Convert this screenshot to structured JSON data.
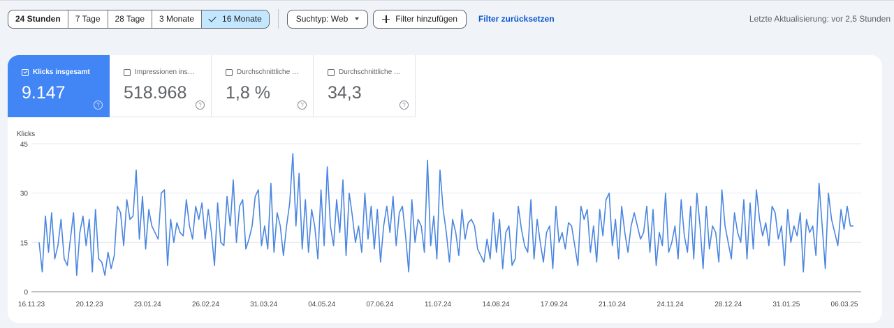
{
  "toolbar": {
    "ranges": [
      {
        "label": "24 Stunden",
        "active": false,
        "bold": true
      },
      {
        "label": "7 Tage",
        "active": false
      },
      {
        "label": "28 Tage",
        "active": false
      },
      {
        "label": "3 Monate",
        "active": false
      },
      {
        "label": "16 Monate",
        "active": true
      }
    ],
    "search_type_label": "Suchtyp: Web",
    "add_filter_label": "Filter hinzufügen",
    "reset_filter_label": "Filter zurücksetzen",
    "last_update": "Letzte Aktualisierung: vor 2,5 Stunden"
  },
  "metrics": [
    {
      "label": "Klicks insgesamt",
      "value": "9.147",
      "checked": true,
      "color": "#4285f4"
    },
    {
      "label": "Impressionen ins…",
      "value": "518.968",
      "checked": false
    },
    {
      "label": "Durchschnittliche …",
      "value": "1,8 %",
      "checked": false
    },
    {
      "label": "Durchschnittliche …",
      "value": "34,3",
      "checked": false
    }
  ],
  "help_glyph": "?",
  "colors": {
    "accent": "#4285f4",
    "line": "#4a86e0",
    "active_range": "#c2e7ff",
    "link": "#0b57d0"
  },
  "chart_data": {
    "type": "line",
    "ylabel": "Klicks",
    "ylim": [
      0,
      45
    ],
    "yticks": [
      "45",
      "30",
      "15",
      "0"
    ],
    "xticks": [
      "16.11.23",
      "20.12.23",
      "23.01.24",
      "26.02.24",
      "31.03.24",
      "04.05.24",
      "07.06.24",
      "11.07.24",
      "14.08.24",
      "17.09.24",
      "21.10.24",
      "24.11.24",
      "28.12.24",
      "31.01.25",
      "06.03.25"
    ],
    "series": [
      {
        "values": [
          15,
          6,
          23,
          12,
          24,
          10,
          14,
          22,
          10,
          8,
          16,
          24,
          5,
          18,
          23,
          14,
          22,
          6,
          25,
          10,
          9,
          5,
          12,
          7,
          11,
          26,
          24,
          14,
          28,
          22,
          23,
          37,
          16,
          29,
          13,
          25,
          20,
          18,
          16,
          30,
          31,
          8,
          22,
          15,
          21,
          18,
          17,
          28,
          20,
          16,
          26,
          22,
          27,
          16,
          25,
          18,
          8,
          27,
          15,
          14,
          29,
          20,
          34,
          15,
          26,
          28,
          13,
          16,
          20,
          29,
          31,
          14,
          20,
          13,
          33,
          12,
          24,
          20,
          11,
          20,
          27,
          42,
          20,
          36,
          13,
          28,
          12,
          25,
          20,
          10,
          31,
          14,
          38,
          20,
          14,
          28,
          18,
          34,
          11,
          30,
          23,
          15,
          20,
          12,
          30,
          16,
          26,
          13,
          25,
          9,
          20,
          26,
          18,
          29,
          14,
          24,
          26,
          17,
          6,
          28,
          15,
          22,
          20,
          12,
          40,
          14,
          23,
          10,
          37,
          25,
          18,
          9,
          22,
          18,
          11,
          25,
          16,
          21,
          22,
          20,
          13,
          11,
          9,
          16,
          10,
          24,
          12,
          22,
          7,
          18,
          20,
          8,
          10,
          26,
          19,
          14,
          12,
          28,
          10,
          22,
          15,
          9,
          18,
          20,
          7,
          26,
          15,
          18,
          13,
          21,
          20,
          14,
          8,
          26,
          22,
          25,
          12,
          20,
          9,
          25,
          17,
          28,
          30,
          14,
          22,
          10,
          26,
          18,
          12,
          20,
          24,
          20,
          16,
          18,
          26,
          12,
          25,
          8,
          18,
          14,
          30,
          12,
          15,
          20,
          10,
          28,
          17,
          12,
          26,
          10,
          30,
          20,
          7,
          26,
          13,
          20,
          18,
          9,
          31,
          20,
          15,
          10,
          24,
          18,
          15,
          28,
          10,
          27,
          13,
          31,
          22,
          17,
          21,
          14,
          26,
          24,
          16,
          20,
          8,
          25,
          15,
          20,
          17,
          24,
          6,
          22,
          18,
          20,
          11,
          33,
          20,
          7,
          30,
          22,
          18,
          14,
          25,
          19,
          26,
          20,
          20
        ]
      }
    ]
  }
}
